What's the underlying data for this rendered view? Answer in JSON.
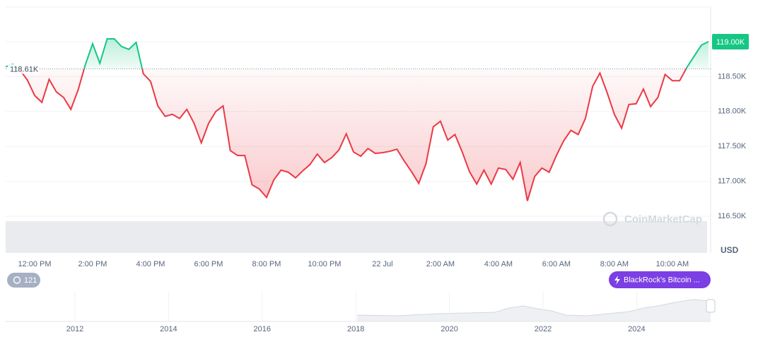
{
  "chart_data": {
    "type": "line",
    "x": [
      -1,
      -0.75,
      -0.5,
      -0.25,
      0,
      0.25,
      0.5,
      0.75,
      1,
      1.25,
      1.5,
      1.75,
      2,
      2.25,
      2.5,
      2.75,
      3,
      3.25,
      3.5,
      3.75,
      4,
      4.25,
      4.5,
      4.75,
      5,
      5.25,
      5.5,
      5.75,
      6,
      6.25,
      6.5,
      6.75,
      7,
      7.25,
      7.5,
      7.75,
      8,
      8.25,
      8.5,
      8.75,
      9,
      9.25,
      9.5,
      9.75,
      10,
      10.25,
      10.5,
      10.75,
      11,
      11.25,
      11.5,
      11.75,
      12,
      12.25,
      12.5,
      12.75,
      13,
      13.25,
      13.5,
      13.75,
      14,
      14.25,
      14.5,
      14.75,
      15,
      15.25,
      15.5,
      15.75,
      16,
      16.25,
      16.5,
      16.75,
      17,
      17.25,
      17.5,
      17.75,
      18,
      18.25,
      18.5,
      18.75,
      19,
      19.25,
      19.5,
      19.75,
      20,
      20.25,
      20.5,
      20.75,
      21,
      21.25,
      21.5,
      21.75,
      22,
      22.25,
      22.5,
      22.75,
      23,
      23.25
    ],
    "values": [
      118640,
      118680,
      118590,
      118450,
      118230,
      118130,
      118460,
      118280,
      118200,
      118030,
      118310,
      118670,
      118970,
      118690,
      119040,
      119040,
      118930,
      118890,
      118990,
      118540,
      118430,
      118080,
      117930,
      117960,
      117900,
      118030,
      117830,
      117550,
      117830,
      118000,
      118080,
      117440,
      117370,
      117370,
      116950,
      116890,
      116770,
      117020,
      117160,
      117130,
      117050,
      117150,
      117240,
      117390,
      117270,
      117340,
      117450,
      117680,
      117420,
      117360,
      117470,
      117400,
      117410,
      117430,
      117460,
      117290,
      117140,
      116970,
      117250,
      117780,
      117860,
      117590,
      117670,
      117420,
      117140,
      116960,
      117160,
      116960,
      117190,
      117170,
      117030,
      117270,
      116720,
      117070,
      117190,
      117130,
      117370,
      117580,
      117730,
      117670,
      117900,
      118360,
      118550,
      118270,
      117960,
      117760,
      118100,
      118110,
      118320,
      118070,
      118200,
      118530,
      118440,
      118440,
      118630,
      118790,
      118950,
      119000
    ],
    "color_up": "#16c784",
    "color_down": "#ea3943",
    "xlim": [
      -1,
      23.32
    ],
    "xticks": [
      {
        "value": 0,
        "label": "12:00 PM"
      },
      {
        "value": 2,
        "label": "2:00 PM"
      },
      {
        "value": 4,
        "label": "4:00 PM"
      },
      {
        "value": 6,
        "label": "6:00 PM"
      },
      {
        "value": 8,
        "label": "8:00 PM"
      },
      {
        "value": 10,
        "label": "10:00 PM"
      },
      {
        "value": 12,
        "label": "22 Jul"
      },
      {
        "value": 14,
        "label": "2:00 AM"
      },
      {
        "value": 16,
        "label": "4:00 AM"
      },
      {
        "value": 18,
        "label": "6:00 AM"
      },
      {
        "value": 20,
        "label": "8:00 AM"
      },
      {
        "value": 22,
        "label": "10:00 AM"
      }
    ],
    "ylim": [
      115975,
      119495
    ],
    "yticks": [
      {
        "value": 116500,
        "label": "116.50K"
      },
      {
        "value": 117000,
        "label": "117.00K"
      },
      {
        "value": 117500,
        "label": "117.50K"
      },
      {
        "value": 118000,
        "label": "118.00K"
      },
      {
        "value": 118500,
        "label": "118.50K"
      },
      {
        "value": 119000,
        "label": "119.00K"
      }
    ],
    "y_label": "USD",
    "grid": true,
    "baseline": {
      "value": 118610,
      "label": "118.61K"
    },
    "current_price": {
      "value": 119000,
      "label": "119.00K"
    },
    "watermark": "CoinMarketCap",
    "navigator_xticks": [
      2012,
      2014,
      2016,
      2018,
      2020,
      2022,
      2024
    ]
  },
  "ui": {
    "notes_badge": 121,
    "event_badge": "BlackRock's Bitcoin ..."
  }
}
